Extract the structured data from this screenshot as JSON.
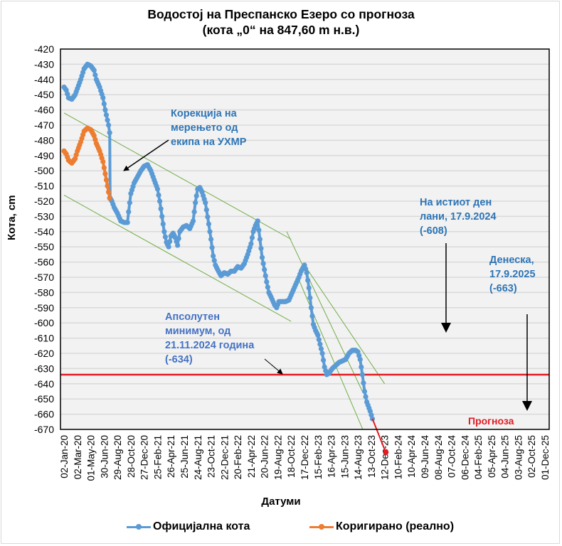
{
  "title": {
    "line1": "Водостој на Преспанско Езеро со прогноза",
    "line2": "(кота „0“ на 847,60 m н.в.)"
  },
  "chart_data": {
    "type": "line",
    "title": "Водостој на Преспанско Езеро со прогноза (кота „0“ на 847,60 m н.в.)",
    "xlabel": "Датуми",
    "ylabel": "Кота, cm",
    "ylim": [
      -670,
      -420
    ],
    "ytick_step": 10,
    "x_unit": "days since 02-Jan-20",
    "xlim": [
      0,
      2160
    ],
    "x_tick_step_days": 60,
    "x_tick_labels": [
      "02-Jan-20",
      "02-Mar-20",
      "01-May-20",
      "30-Jun-20",
      "29-Aug-20",
      "28-Oct-20",
      "27-Dec-20",
      "25-Feb-21",
      "26-Apr-21",
      "25-Jun-21",
      "24-Aug-21",
      "23-Oct-21",
      "22-Dec-21",
      "20-Feb-22",
      "21-Apr-22",
      "20-Jun-22",
      "19-Aug-22",
      "18-Oct-22",
      "17-Dec-22",
      "15-Feb-23",
      "16-Apr-23",
      "15-Jun-23",
      "14-Aug-23",
      "13-Oct-23",
      "12-Dec-23",
      "10-Feb-24",
      "10-Apr-24",
      "09-Jun-24",
      "08-Aug-24",
      "07-Oct-24",
      "06-Dec-24",
      "04-Feb-25",
      "05-Apr-25",
      "04-Jun-25",
      "03-Aug-25",
      "02-Oct-25",
      "01-Dec-25"
    ],
    "grid": "horizontal",
    "legend_position": "bottom",
    "series": [
      {
        "name": "Официјална кота",
        "color": "#5b9bd5",
        "points": [
          [
            0,
            -445
          ],
          [
            10,
            -447
          ],
          [
            20,
            -452
          ],
          [
            35,
            -453
          ],
          [
            50,
            -450
          ],
          [
            60,
            -446
          ],
          [
            75,
            -440
          ],
          [
            90,
            -433
          ],
          [
            105,
            -430
          ],
          [
            120,
            -431
          ],
          [
            135,
            -434
          ],
          [
            145,
            -440
          ],
          [
            160,
            -445
          ],
          [
            175,
            -452
          ],
          [
            185,
            -460
          ],
          [
            200,
            -470
          ],
          [
            205,
            -475
          ],
          [
            207,
            -518
          ],
          [
            215,
            -520
          ],
          [
            225,
            -524
          ],
          [
            240,
            -528
          ],
          [
            255,
            -533
          ],
          [
            270,
            -534
          ],
          [
            285,
            -534
          ],
          [
            290,
            -527
          ],
          [
            300,
            -515
          ],
          [
            315,
            -508
          ],
          [
            330,
            -504
          ],
          [
            345,
            -500
          ],
          [
            360,
            -497
          ],
          [
            375,
            -496
          ],
          [
            390,
            -500
          ],
          [
            405,
            -506
          ],
          [
            420,
            -512
          ],
          [
            430,
            -520
          ],
          [
            440,
            -530
          ],
          [
            450,
            -540
          ],
          [
            460,
            -547
          ],
          [
            470,
            -550
          ],
          [
            480,
            -543
          ],
          [
            490,
            -541
          ],
          [
            500,
            -544
          ],
          [
            510,
            -549
          ],
          [
            520,
            -540
          ],
          [
            535,
            -537
          ],
          [
            550,
            -536
          ],
          [
            565,
            -538
          ],
          [
            580,
            -533
          ],
          [
            590,
            -521
          ],
          [
            600,
            -512
          ],
          [
            610,
            -511
          ],
          [
            620,
            -514
          ],
          [
            635,
            -521
          ],
          [
            650,
            -535
          ],
          [
            660,
            -545
          ],
          [
            670,
            -556
          ],
          [
            680,
            -562
          ],
          [
            690,
            -565
          ],
          [
            705,
            -569
          ],
          [
            720,
            -567
          ],
          [
            735,
            -568
          ],
          [
            750,
            -566
          ],
          [
            765,
            -566
          ],
          [
            780,
            -563
          ],
          [
            795,
            -564
          ],
          [
            810,
            -561
          ],
          [
            825,
            -555
          ],
          [
            840,
            -548
          ],
          [
            850,
            -540
          ],
          [
            860,
            -536
          ],
          [
            870,
            -533
          ],
          [
            880,
            -545
          ],
          [
            890,
            -557
          ],
          [
            900,
            -565
          ],
          [
            910,
            -573
          ],
          [
            920,
            -580
          ],
          [
            930,
            -583
          ],
          [
            945,
            -588
          ],
          [
            955,
            -590
          ],
          [
            965,
            -586
          ],
          [
            980,
            -586
          ],
          [
            995,
            -586
          ],
          [
            1010,
            -585
          ],
          [
            1025,
            -580
          ],
          [
            1040,
            -575
          ],
          [
            1055,
            -570
          ],
          [
            1065,
            -566
          ],
          [
            1080,
            -562
          ],
          [
            1090,
            -567
          ],
          [
            1100,
            -577
          ],
          [
            1110,
            -590
          ],
          [
            1120,
            -601
          ],
          [
            1130,
            -605
          ],
          [
            1140,
            -608
          ],
          [
            1150,
            -614
          ],
          [
            1160,
            -620
          ],
          [
            1170,
            -629
          ],
          [
            1180,
            -634
          ],
          [
            1190,
            -633
          ],
          [
            1205,
            -630
          ],
          [
            1220,
            -628
          ],
          [
            1235,
            -626
          ],
          [
            1250,
            -625
          ],
          [
            1265,
            -624
          ],
          [
            1280,
            -620
          ],
          [
            1295,
            -618
          ],
          [
            1310,
            -618
          ],
          [
            1320,
            -619
          ],
          [
            1330,
            -624
          ],
          [
            1340,
            -634
          ],
          [
            1350,
            -645
          ],
          [
            1360,
            -652
          ],
          [
            1375,
            -658
          ],
          [
            1385,
            -663
          ]
        ]
      },
      {
        "name": "Коригирано (реално)",
        "color": "#ed7d31",
        "points": [
          [
            0,
            -487
          ],
          [
            10,
            -489
          ],
          [
            20,
            -493
          ],
          [
            35,
            -495
          ],
          [
            50,
            -492
          ],
          [
            60,
            -487
          ],
          [
            75,
            -481
          ],
          [
            90,
            -474
          ],
          [
            105,
            -472
          ],
          [
            120,
            -473
          ],
          [
            135,
            -477
          ],
          [
            145,
            -482
          ],
          [
            160,
            -487
          ],
          [
            175,
            -494
          ],
          [
            185,
            -502
          ],
          [
            195,
            -510
          ],
          [
            205,
            -518
          ]
        ]
      },
      {
        "name": "Прогноза",
        "color": "#e31b23",
        "points": [
          [
            1385,
            -663
          ],
          [
            1445,
            -685
          ]
        ]
      }
    ],
    "reference_lines": [
      {
        "name": "Апсолутен минимум",
        "value": -634,
        "color": "#e31b23"
      }
    ],
    "trend_lines": [
      {
        "color": "#70ad47",
        "from": [
          0,
          -462
        ],
        "to": [
          1020,
          -545
        ]
      },
      {
        "color": "#70ad47",
        "from": [
          0,
          -516
        ],
        "to": [
          1020,
          -599
        ]
      },
      {
        "color": "#70ad47",
        "from": [
          1000,
          -540
        ],
        "to": [
          1340,
          -645
        ]
      },
      {
        "color": "#70ad47",
        "from": [
          1080,
          -562
        ],
        "to": [
          1440,
          -640
        ]
      },
      {
        "color": "#70ad47",
        "from": [
          1050,
          -570
        ],
        "to": [
          1400,
          -690
        ]
      }
    ],
    "annotations": [
      {
        "text": [
          "Корекција на",
          "мерењето од",
          "екипа на УХМР"
        ],
        "arrow_to": [
          207,
          -500
        ]
      },
      {
        "text": [
          "На истиот ден",
          "лани, 17.9.2024",
          "(-608)"
        ],
        "arrow_to": [
          1128,
          -608
        ]
      },
      {
        "text": [
          "Денеска,",
          "17.9.2025",
          "(-663)"
        ],
        "arrow_to": [
          1389,
          -660
        ]
      },
      {
        "text": [
          "Апсолутен",
          "минимум, од",
          "21.11.2024 година",
          "(-634)"
        ],
        "arrow_to": [
          980,
          -633
        ]
      },
      {
        "text": [
          "Прогноза"
        ]
      }
    ]
  },
  "annotations": {
    "correction": [
      "Корекција на",
      "мерењето од",
      "екипа на УХМР"
    ],
    "last_year": [
      "На истиот ден",
      "лани, 17.9.2024",
      "(-608)"
    ],
    "today": [
      "Денеска,",
      "17.9.2025",
      "(-663)"
    ],
    "minimum": [
      "Апсолутен",
      "минимум, од",
      "21.11.2024 година",
      "(-634)"
    ],
    "forecast": "Прогноза"
  },
  "axes": {
    "xlabel": "Датуми",
    "ylabel": "Кота, cm"
  },
  "legend": {
    "official": "Официјална кота",
    "corrected": "Коригирано (реално)",
    "official_color": "#5b9bd5",
    "corrected_color": "#ed7d31"
  }
}
